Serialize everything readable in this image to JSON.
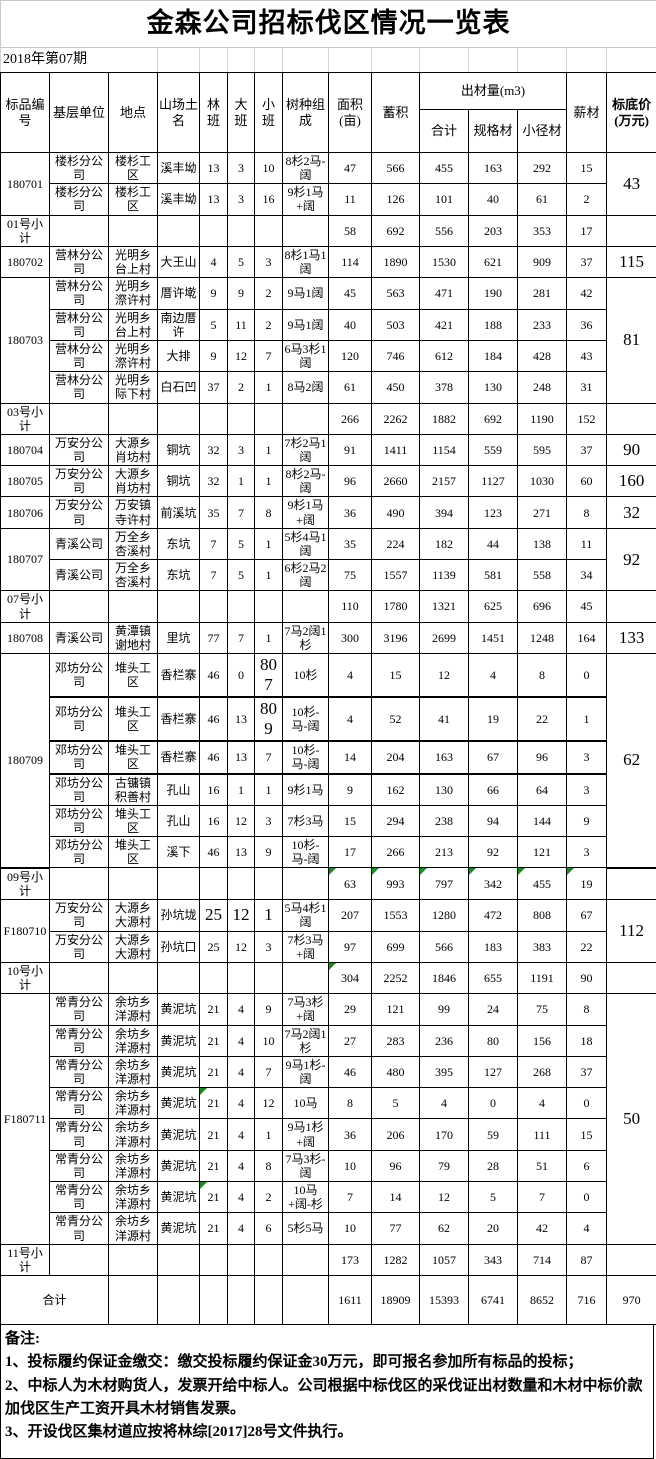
{
  "title": "金森公司招标伐区情况一览表",
  "period": "2018年第07期",
  "columns": {
    "item_no": "标品编号",
    "unit": "基层单位",
    "location": "地点",
    "mountain": "山场土名",
    "forest_class": "林班",
    "large_class": "大班",
    "small_class": "小班",
    "species": "树种组成",
    "area": "面积(亩)",
    "stock": "蓄积",
    "output_group": "出材量(m3)",
    "output_total": "合计",
    "spec_timber": "规格材",
    "small_timber": "小径材",
    "firewood": "薪材",
    "base_price": "标底价(万元)"
  },
  "colors": {
    "border": "#000000",
    "light_grid": "#c9c9c9",
    "flag_triangle": "#1d8a1d"
  },
  "table": {
    "rows": [
      {
        "c": [
          {
            "t": "180701",
            "rs": 2
          },
          "楼杉分公司",
          "楼杉工区",
          "溪丰坳",
          "13",
          "3",
          "10",
          "8杉2马-阔",
          "47",
          "566",
          "455",
          "163",
          "292",
          "15",
          {
            "t": "43",
            "rs": 2,
            "big": 1
          }
        ]
      },
      {
        "c": [
          "楼杉分公司",
          "楼杉工区",
          "溪丰坳",
          "13",
          "3",
          "16",
          "9杉1马+阔",
          "11",
          "126",
          "101",
          "40",
          "61",
          "2"
        ]
      },
      {
        "c": [
          "01号小计",
          "",
          "",
          "",
          "",
          "",
          "",
          "",
          "58",
          "692",
          "556",
          "203",
          "353",
          "17",
          ""
        ]
      },
      {
        "c": [
          "180702",
          "营林分公司",
          "光明乡台上村",
          "大王山",
          "4",
          "5",
          "3",
          "8杉1马1阔",
          "114",
          "1890",
          "1530",
          "621",
          "909",
          "37",
          {
            "t": "115",
            "big": 1
          }
        ]
      },
      {
        "c": [
          {
            "t": "180703",
            "rs": 4
          },
          "营林分公司",
          "光明乡漈许村",
          "厝许墘",
          "9",
          "9",
          "2",
          "9马1阔",
          "45",
          "563",
          "471",
          "190",
          "281",
          "42",
          {
            "t": "81",
            "rs": 4,
            "big": 1
          }
        ]
      },
      {
        "c": [
          "营林分公司",
          "光明乡台上村",
          "南边厝许",
          "5",
          "11",
          "2",
          "9马1阔",
          "40",
          "503",
          "421",
          "188",
          "233",
          "36"
        ]
      },
      {
        "c": [
          "营林分公司",
          "光明乡漈许村",
          "大排",
          "9",
          "12",
          "7",
          "6马3杉1阔",
          "120",
          "746",
          "612",
          "184",
          "428",
          "43"
        ]
      },
      {
        "c": [
          "营林分公司",
          "光明乡际下村",
          "白石凹",
          "37",
          "2",
          "1",
          "8马2阔",
          "61",
          "450",
          "378",
          "130",
          "248",
          "31"
        ]
      },
      {
        "c": [
          "03号小计",
          "",
          "",
          "",
          "",
          "",
          "",
          "",
          "266",
          "2262",
          "1882",
          "692",
          "1190",
          "152",
          ""
        ]
      },
      {
        "c": [
          "180704",
          "万安分公司",
          "大源乡肖坊村",
          "铜坑",
          "32",
          "3",
          "1",
          "7杉2马1阔",
          "91",
          "1411",
          "1154",
          "559",
          "595",
          "37",
          {
            "t": "90",
            "big": 1
          }
        ]
      },
      {
        "c": [
          "180705",
          "万安分公司",
          "大源乡肖坊村",
          "铜坑",
          "32",
          "1",
          "1",
          "8杉2马-阔",
          "96",
          "2660",
          "2157",
          "1127",
          "1030",
          "60",
          {
            "t": "160",
            "big": 1
          }
        ]
      },
      {
        "c": [
          "180706",
          "万安分公司",
          "万安镇寺许村",
          "前溪坑",
          "35",
          "7",
          "8",
          "9杉1马+阔",
          "36",
          "490",
          "394",
          "123",
          "271",
          "8",
          {
            "t": "32",
            "big": 1
          }
        ]
      },
      {
        "c": [
          {
            "t": "180707",
            "rs": 2
          },
          "青溪公司",
          "万全乡杏溪村",
          "东坑",
          "7",
          "5",
          "1",
          "5杉4马1阔",
          "35",
          "224",
          "182",
          "44",
          "138",
          "11",
          {
            "t": "92",
            "rs": 2,
            "big": 1
          }
        ]
      },
      {
        "c": [
          "青溪公司",
          "万全乡杏溪村",
          "东坑",
          "7",
          "5",
          "1",
          "6杉2马2阔",
          "75",
          "1557",
          "1139",
          "581",
          "558",
          "34"
        ]
      },
      {
        "c": [
          "07号小计",
          "",
          "",
          "",
          "",
          "",
          "",
          "",
          "110",
          "1780",
          "1321",
          "625",
          "696",
          "45",
          ""
        ]
      },
      {
        "c": [
          "180708",
          "青溪公司",
          "黄潭镇谢地村",
          "里坑",
          "77",
          "7",
          "1",
          "7马2阔1杉",
          "300",
          "3196",
          "2699",
          "1451",
          "1248",
          "164",
          {
            "t": "133",
            "big": 1
          }
        ]
      },
      {
        "c": [
          {
            "t": "180709",
            "rs": 6
          },
          "邓坊分公司",
          "堆头工区",
          "香栏寨",
          "46",
          "0",
          {
            "t": "807",
            "big": 1
          },
          "10杉",
          "4",
          "15",
          "12",
          "4",
          "8",
          "0",
          {
            "t": "62",
            "rs": 6,
            "big": 1
          }
        ],
        "thick": 1
      },
      {
        "c": [
          "邓坊分公司",
          "堆头工区",
          "香栏寨",
          "46",
          "13",
          {
            "t": "809",
            "big": 1
          },
          "10杉-马-阔",
          "4",
          "52",
          "41",
          "19",
          "22",
          "1"
        ],
        "thick": 1
      },
      {
        "c": [
          "邓坊分公司",
          "堆头工区",
          "香栏寨",
          "46",
          "13",
          "7",
          "10杉-马-阔",
          "14",
          "204",
          "163",
          "67",
          "96",
          "3"
        ],
        "thick": 1
      },
      {
        "c": [
          "邓坊分公司",
          "古镛镇积善村",
          "孔山",
          "16",
          "1",
          "1",
          "9杉1马",
          "9",
          "162",
          "130",
          "66",
          "64",
          "3"
        ]
      },
      {
        "c": [
          "邓坊分公司",
          "堆头工区",
          "孔山",
          "16",
          "12",
          "3",
          "7杉3马",
          "15",
          "294",
          "238",
          "94",
          "144",
          "9"
        ]
      },
      {
        "c": [
          "邓坊分公司",
          "堆头工区",
          "溪下",
          "46",
          "13",
          "9",
          "10杉-马-阔",
          "17",
          "266",
          "213",
          "92",
          "121",
          "3"
        ]
      },
      {
        "c": [
          "09号小计",
          "",
          "",
          "",
          "",
          "",
          "",
          "",
          {
            "t": "63",
            "tri": 1
          },
          {
            "t": "993",
            "tri": 1
          },
          {
            "t": "797",
            "tri": 1
          },
          {
            "t": "342",
            "tri": 1
          },
          {
            "t": "455",
            "tri": 1
          },
          {
            "t": "19",
            "tri": 1
          },
          ""
        ]
      },
      {
        "c": [
          {
            "t": "F180710",
            "rs": 2
          },
          "万安分公司",
          "大源乡大源村",
          "孙坑垅",
          {
            "t": "25",
            "big": 1
          },
          {
            "t": "12",
            "big": 1
          },
          {
            "t": "1",
            "big": 1
          },
          "5马4杉1阔",
          "207",
          "1553",
          "1280",
          "472",
          "808",
          "67",
          {
            "t": "112",
            "rs": 2,
            "big": 1
          }
        ]
      },
      {
        "c": [
          "万安分公司",
          "大源乡大源村",
          "孙坑口",
          "25",
          "12",
          "3",
          "7杉3马+阔",
          "97",
          "699",
          "566",
          "183",
          "383",
          "22"
        ]
      },
      {
        "c": [
          "10号小计",
          "",
          "",
          "",
          "",
          "",
          "",
          "",
          {
            "t": "304",
            "tri": 1
          },
          "2252",
          "1846",
          "655",
          "1191",
          "90",
          ""
        ]
      },
      {
        "c": [
          {
            "t": "F180711",
            "rs": 8
          },
          "常青分公司",
          "余坊乡洋源村",
          "黄泥坑",
          "21",
          "4",
          "9",
          "7马3杉+阔",
          "29",
          "121",
          "99",
          "24",
          "75",
          "8",
          {
            "t": "50",
            "rs": 8,
            "big": 1
          }
        ]
      },
      {
        "c": [
          "常青分公司",
          "余坊乡洋源村",
          "黄泥坑",
          "21",
          "4",
          "10",
          "7马2阔1杉",
          "27",
          "283",
          "236",
          "80",
          "156",
          "18"
        ]
      },
      {
        "c": [
          "常青分公司",
          "余坊乡洋源村",
          "黄泥坑",
          "21",
          "4",
          "7",
          "9马1杉-阔",
          "46",
          "480",
          "395",
          "127",
          "268",
          "37"
        ]
      },
      {
        "c": [
          "常青分公司",
          "余坊乡洋源村",
          "黄泥坑",
          {
            "t": "21",
            "tri": 1
          },
          "4",
          "12",
          "10马",
          "8",
          "5",
          "4",
          "0",
          "4",
          "0"
        ]
      },
      {
        "c": [
          "常青分公司",
          "余坊乡洋源村",
          "黄泥坑",
          "21",
          "4",
          "1",
          "9马1杉+阔",
          "36",
          "206",
          "170",
          "59",
          "111",
          "15"
        ]
      },
      {
        "c": [
          "常青分公司",
          "余坊乡洋源村",
          "黄泥坑",
          "21",
          "4",
          "8",
          "7马3杉-阔",
          "10",
          "96",
          "79",
          "28",
          "51",
          "6"
        ]
      },
      {
        "c": [
          "常青分公司",
          "余坊乡洋源村",
          "黄泥坑",
          {
            "t": "21",
            "tri": 1
          },
          "4",
          "2",
          "10马+阔-杉",
          "7",
          "14",
          "12",
          "5",
          "7",
          "0"
        ]
      },
      {
        "c": [
          "常青分公司",
          "余坊乡洋源村",
          "黄泥坑",
          "21",
          "4",
          "6",
          "5杉5马",
          "10",
          "77",
          "62",
          "20",
          "42",
          "4"
        ]
      },
      {
        "c": [
          "11号小计",
          "",
          "",
          "",
          "",
          "",
          "",
          "",
          "173",
          "1282",
          "1057",
          "343",
          "714",
          "87",
          ""
        ]
      },
      {
        "c": [
          {
            "t": "合计",
            "cs": 2
          },
          "",
          "",
          "",
          "",
          "",
          "",
          "1611",
          "18909",
          "15393",
          "6741",
          "8652",
          "716",
          "970"
        ],
        "tall": 1
      }
    ]
  },
  "notes": {
    "label": "备注:",
    "items": [
      "1、投标履约保证金缴交：缴交投标履约保证金30万元，即可报名参加所有标品的投标；",
      "2、中标人为木材购货人，发票开给中标人。公司根据中标伐区的采伐证出材数量和木材中标价款加伐区生产工资开具木材销售发票。",
      "3、开设伐区集材道应按将林综[2017]28号文件执行。"
    ]
  }
}
